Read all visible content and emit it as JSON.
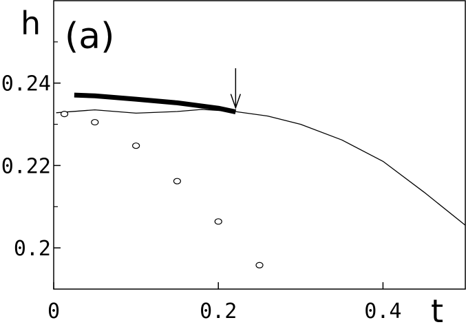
{
  "chart_data": {
    "type": "line",
    "panel_label": "(a)",
    "xlabel": "t",
    "ylabel": "h",
    "xlim": [
      0,
      0.5
    ],
    "ylim": [
      0.19,
      0.26
    ],
    "x_ticks": [
      {
        "value": 0,
        "label": "0"
      },
      {
        "value": 0.2,
        "label": "0.2"
      },
      {
        "value": 0.4,
        "label": "0.4"
      }
    ],
    "y_ticks": [
      {
        "value": 0.2,
        "label": "0.2"
      },
      {
        "value": 0.22,
        "label": "0.22"
      },
      {
        "value": 0.24,
        "label": "0.24"
      }
    ],
    "y_minor_ticks": [
      0.21,
      0.23,
      0.25
    ],
    "series": [
      {
        "style": "thin-line",
        "points": [
          [
            0.003,
            0.2328
          ],
          [
            0.05,
            0.2335
          ],
          [
            0.1,
            0.2327
          ],
          [
            0.15,
            0.2331
          ],
          [
            0.18,
            0.2336
          ],
          [
            0.22,
            0.2331
          ],
          [
            0.26,
            0.232
          ],
          [
            0.3,
            0.23
          ],
          [
            0.35,
            0.2262
          ],
          [
            0.4,
            0.221
          ],
          [
            0.45,
            0.2135
          ],
          [
            0.5,
            0.2055
          ]
        ]
      },
      {
        "style": "thick-line",
        "points": [
          [
            0.025,
            0.2371
          ],
          [
            0.05,
            0.2369
          ],
          [
            0.1,
            0.2361
          ],
          [
            0.15,
            0.2352
          ],
          [
            0.2,
            0.2339
          ],
          [
            0.221,
            0.233
          ]
        ]
      },
      {
        "style": "open-circles",
        "points": [
          [
            0.013,
            0.2325
          ],
          [
            0.05,
            0.2305
          ],
          [
            0.1,
            0.2248
          ],
          [
            0.15,
            0.2162
          ],
          [
            0.2,
            0.2064
          ],
          [
            0.25,
            0.1958
          ]
        ]
      }
    ],
    "annotations": [
      {
        "type": "arrow",
        "x": 0.221,
        "y_from": 0.2436,
        "y_to": 0.234
      }
    ],
    "grid": false,
    "colors": {
      "line": "#000000",
      "background": "#ffffff"
    }
  }
}
